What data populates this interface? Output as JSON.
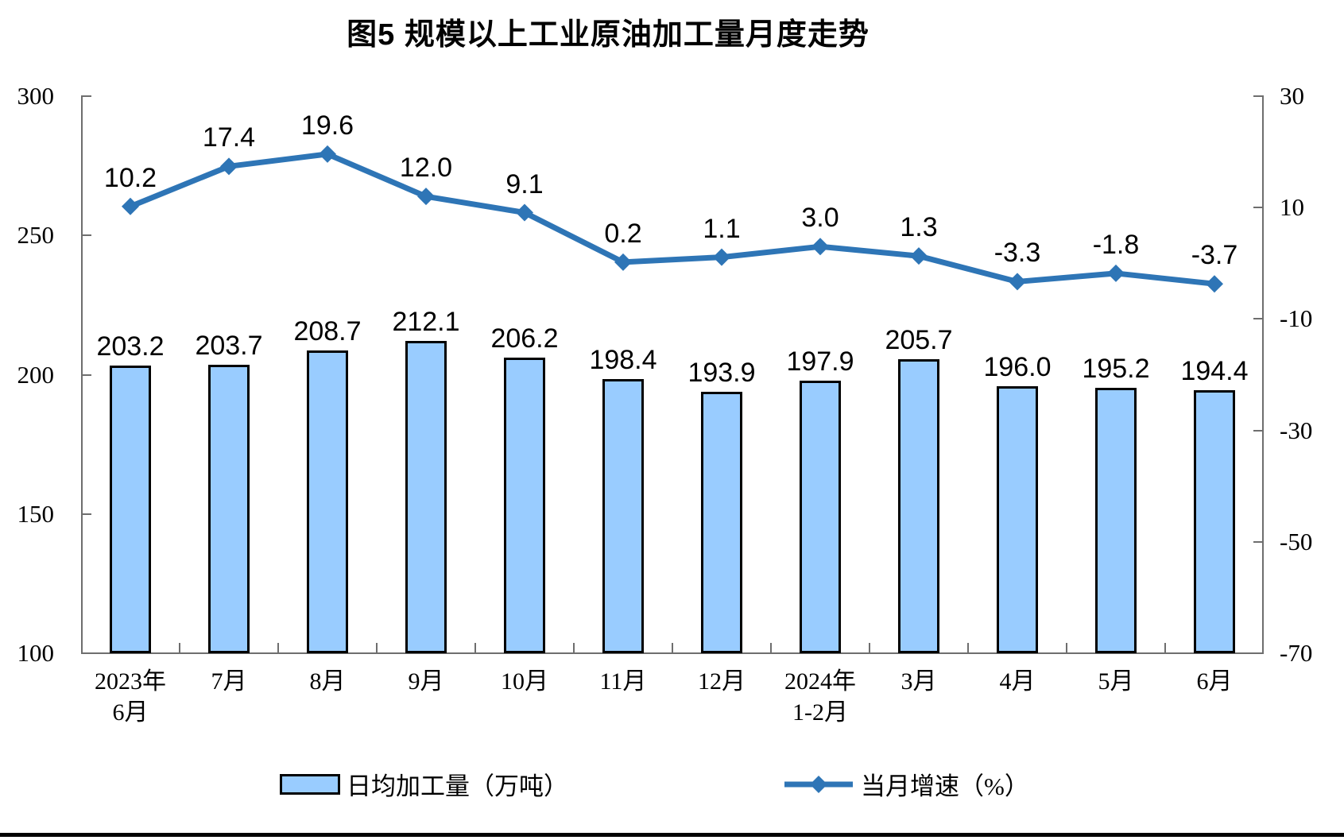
{
  "page": {
    "background": "#FFFFFF",
    "bottom_rule_color": "#000000"
  },
  "chart_data": {
    "type": "bar+line",
    "title": "图5  规模以上工业原油加工量月度走势",
    "categories": [
      [
        "2023年",
        "6月"
      ],
      [
        "7月"
      ],
      [
        "8月"
      ],
      [
        "9月"
      ],
      [
        "10月"
      ],
      [
        "11月"
      ],
      [
        "12月"
      ],
      [
        "2024年",
        "1-2月"
      ],
      [
        "3月"
      ],
      [
        "4月"
      ],
      [
        "5月"
      ],
      [
        "6月"
      ]
    ],
    "series": [
      {
        "name": "日均加工量（万吨）",
        "type": "bar",
        "axis": "left",
        "values": [
          203.2,
          203.7,
          208.7,
          212.1,
          206.2,
          198.4,
          193.9,
          197.9,
          205.7,
          196.0,
          195.2,
          194.4
        ]
      },
      {
        "name": "当月增速（%）",
        "type": "line",
        "axis": "right",
        "values": [
          10.2,
          17.4,
          19.6,
          12.0,
          9.1,
          0.2,
          1.1,
          3.0,
          1.3,
          -3.3,
          -1.8,
          -3.7
        ]
      }
    ],
    "left_axis": {
      "min": 100,
      "max": 300,
      "step": 50,
      "ticks": [
        300,
        250,
        200,
        150,
        100
      ]
    },
    "right_axis": {
      "min": -70,
      "max": 30,
      "step": 20,
      "ticks": [
        30,
        10,
        -10,
        -30,
        -50,
        -70
      ]
    },
    "legend": {
      "position": "bottom"
    },
    "grid": false,
    "colors": {
      "bar_fill": "#99CCFF",
      "bar_border": "#000000",
      "line": "#2E75B6",
      "axis": "#6E6E6E",
      "text": "#000000"
    }
  }
}
